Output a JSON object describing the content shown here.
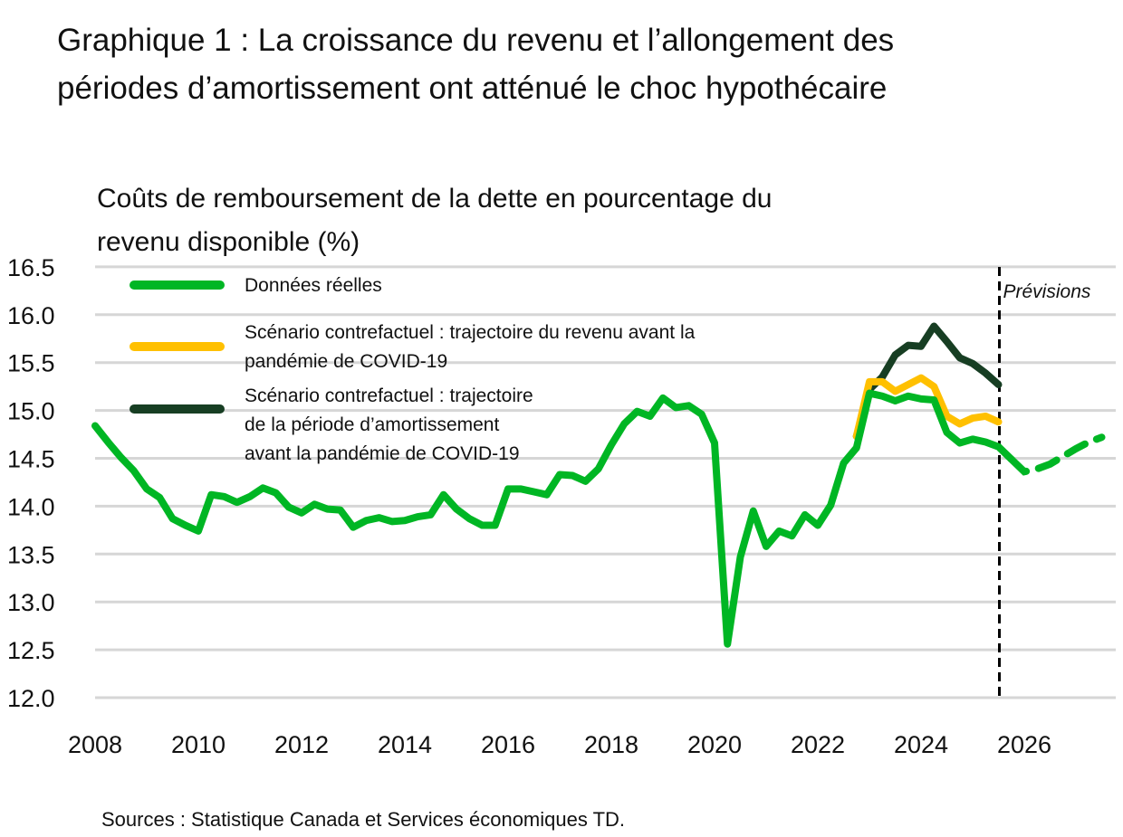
{
  "title": "Graphique 1 : La croissance du revenu et l’allongement des périodes d’amortissement ont atténué le choc hypothécaire",
  "source": "Sources : Statistique Canada et Services économiques TD.",
  "chart_data": {
    "type": "line",
    "title": "Graphique 1 : La croissance du revenu et l’allongement des périodes d’amortissement ont atténué le choc hypothécaire",
    "ylabel": "Coûts de remboursement de la dette en pourcentage du revenu disponible (%)",
    "xlabel": "",
    "xlim": [
      2008,
      2028
    ],
    "ylim": [
      12.0,
      16.5
    ],
    "yticks": [
      "12.0",
      "12.5",
      "13.0",
      "13.5",
      "14.0",
      "14.5",
      "15.0",
      "15.5",
      "16.0",
      "16.5"
    ],
    "xticks": [
      "2008",
      "2010",
      "2012",
      "2014",
      "2016",
      "2018",
      "2020",
      "2022",
      "2024",
      "2026"
    ],
    "grid": "horizontal",
    "legend_position": "top-left",
    "forecast_start": 2025.5,
    "forecast_label": "Prévisions",
    "series": [
      {
        "name": "Données réelles",
        "color": "#00b624",
        "x_start": 2008.0,
        "x_step": 0.25,
        "values": [
          14.84,
          14.67,
          14.51,
          14.37,
          14.18,
          14.09,
          13.87,
          13.8,
          13.74,
          14.12,
          14.1,
          14.04,
          14.1,
          14.19,
          14.14,
          13.99,
          13.93,
          14.02,
          13.97,
          13.96,
          13.78,
          13.85,
          13.88,
          13.84,
          13.85,
          13.89,
          13.91,
          14.12,
          13.97,
          13.87,
          13.8,
          13.8,
          14.18,
          14.18,
          14.15,
          14.12,
          14.33,
          14.32,
          14.26,
          14.39,
          14.64,
          14.86,
          14.99,
          14.94,
          15.13,
          15.03,
          15.05,
          14.96,
          14.66,
          12.56,
          13.47,
          13.95,
          13.58,
          13.74,
          13.69,
          13.91,
          13.8,
          14.01,
          14.45,
          14.61,
          15.18,
          15.15,
          15.1,
          15.15,
          15.12,
          15.11,
          14.77,
          14.66,
          14.7,
          14.67,
          14.62,
          14.49
        ],
        "forecast": {
          "x_start": 2025.75,
          "x_step": 0.25,
          "values": [
            14.49,
            14.36,
            14.39,
            14.44,
            14.52,
            14.6,
            14.67,
            14.72
          ]
        }
      },
      {
        "name": "Scénario contrefactuel : trajectoire du revenu avant la pandémie de COVID-19",
        "color": "#ffc000",
        "x_start": 2022.75,
        "x_step": 0.25,
        "values": [
          14.73,
          15.3,
          15.3,
          15.2,
          15.27,
          15.34,
          15.25,
          14.94,
          14.86,
          14.92,
          14.94,
          14.88
        ]
      },
      {
        "name": "Scénario contrefactuel : trajectoire de la période d’amortissement avant la pandémie de COVID-19",
        "color": "#173e23",
        "x_start": 2022.75,
        "x_step": 0.25,
        "values": [
          14.73,
          15.22,
          15.35,
          15.58,
          15.68,
          15.67,
          15.88,
          15.72,
          15.55,
          15.49,
          15.39,
          15.27
        ]
      }
    ],
    "legend": {
      "lines": [
        [
          "Données réelles"
        ],
        [
          "Scénario contrefactuel : trajectoire du revenu avant la",
          "pandémie de COVID-19"
        ],
        [
          "Scénario contrefactuel : trajectoire",
          "de la période d’amortissement",
          "avant la pandémie de COVID-19"
        ]
      ]
    }
  }
}
